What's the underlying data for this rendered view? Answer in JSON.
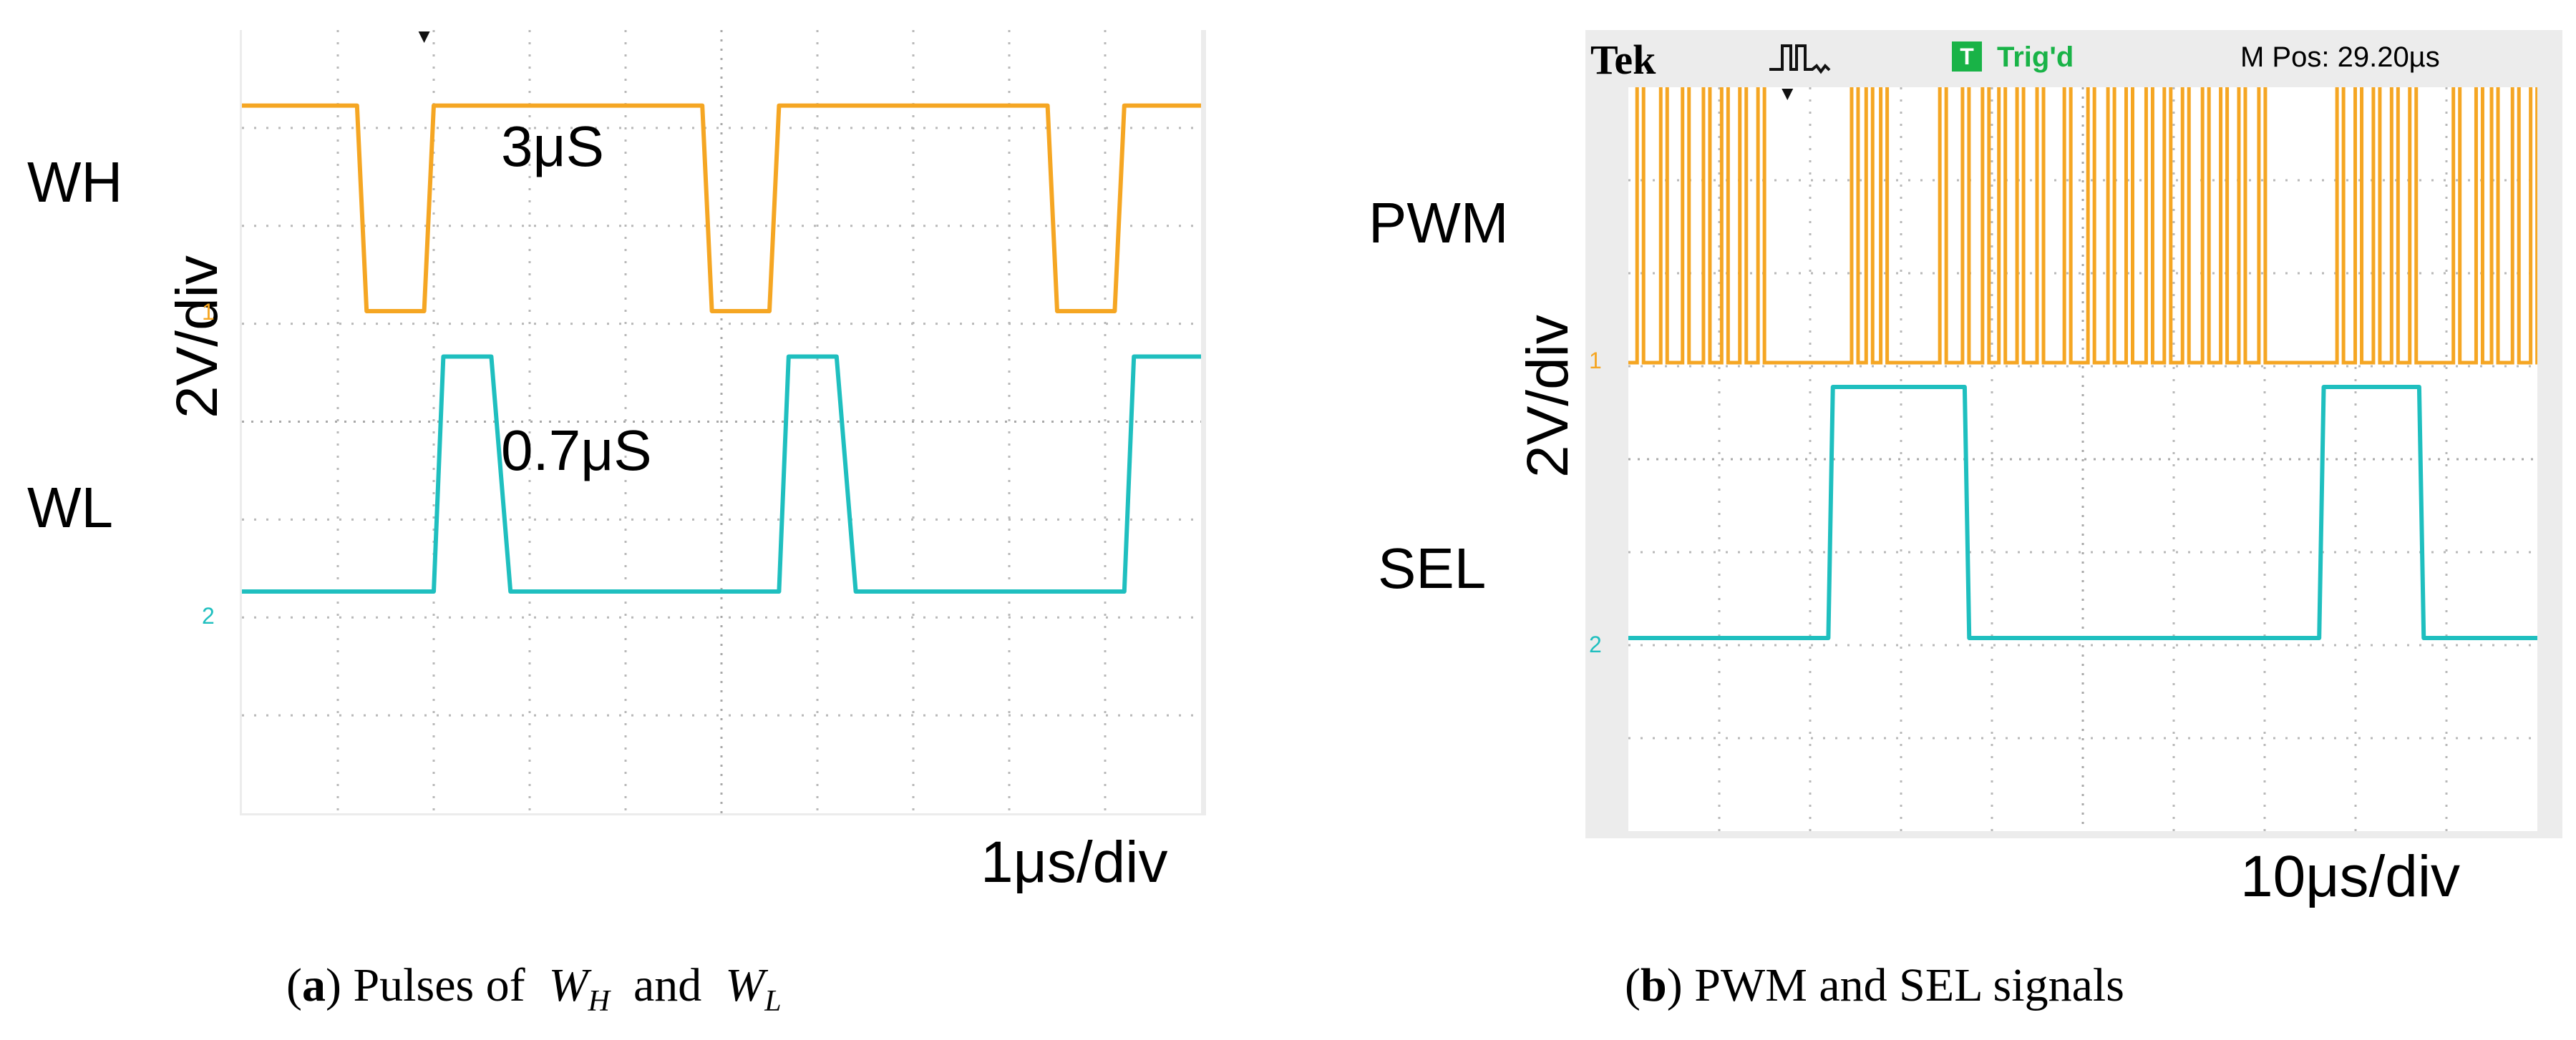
{
  "chart_data": [
    {
      "type": "line",
      "panel": "a",
      "caption_prefix": "a",
      "caption_text": "Pulses of",
      "caption_and": "and",
      "caption_var1": "W",
      "caption_sub1": "H",
      "caption_var2": "W",
      "caption_sub2": "L",
      "vertical_scale_label": "2V/div",
      "time_scale_label": "1μs/div",
      "grid": true,
      "x_divisions": 10,
      "y_divisions": 8,
      "colors": {
        "ch1": "#f5a623",
        "ch2": "#1fbfbf"
      },
      "channel_markers": [
        "1",
        "2"
      ],
      "annotations": [
        "3μS",
        "0.7μS"
      ],
      "series": [
        {
          "name": "WH",
          "channel": "1",
          "x": [
            0,
            1.2,
            1.3,
            1.9,
            2.0,
            4.8,
            4.9,
            5.5,
            5.6,
            8.4,
            8.5,
            9.1,
            9.2,
            10
          ],
          "y": [
            2.1,
            2.1,
            0,
            0,
            2.1,
            2.1,
            0,
            0,
            2.1,
            2.1,
            0,
            0,
            2.1,
            2.1
          ]
        },
        {
          "name": "WL",
          "channel": "2",
          "x": [
            0,
            2.0,
            2.1,
            2.6,
            2.8,
            5.6,
            5.7,
            6.2,
            6.4,
            9.2,
            9.3,
            10
          ],
          "y": [
            0,
            0,
            2.4,
            2.4,
            0,
            0,
            2.4,
            2.4,
            0,
            0,
            2.4,
            2.4
          ]
        }
      ]
    },
    {
      "type": "line",
      "panel": "b",
      "caption_prefix": "b",
      "caption_text": "PWM and SEL signals",
      "header_brand": "Tek",
      "header_status": "Trig'd",
      "header_status_icon": "T",
      "header_position": "M Pos: 29.20µs",
      "vertical_scale_label": "2V/div",
      "time_scale_label": "10μs/div",
      "grid": true,
      "x_divisions": 10,
      "y_divisions": 8,
      "colors": {
        "ch1": "#f5a623",
        "ch2": "#1fbfbf",
        "status": "#19b347"
      },
      "channel_markers": [
        "1",
        "2"
      ],
      "series": [
        {
          "name": "PWM",
          "channel": "1",
          "pulses_x": [
            0.12,
            0.38,
            0.62,
            0.85,
            1.05,
            1.25,
            1.45,
            2.48,
            2.64,
            2.8,
            3.45,
            3.7,
            3.92,
            4.1,
            4.3,
            4.52,
            4.82,
            5.08,
            5.3,
            5.5,
            5.72,
            5.92,
            6.12,
            6.34,
            6.54,
            6.74,
            6.96,
            7.82,
            8.02,
            8.22,
            8.42,
            8.62,
            9.1,
            9.35,
            9.52,
            9.75,
            9.95
          ],
          "high": 3.0,
          "low": 0
        },
        {
          "name": "SEL",
          "channel": "2",
          "x": [
            0,
            2.2,
            2.25,
            3.7,
            3.75,
            7.6,
            7.65,
            8.7,
            8.75,
            10
          ],
          "y": [
            0,
            0,
            2.7,
            2.7,
            0,
            0,
            2.7,
            2.7,
            0,
            0
          ]
        }
      ]
    }
  ]
}
